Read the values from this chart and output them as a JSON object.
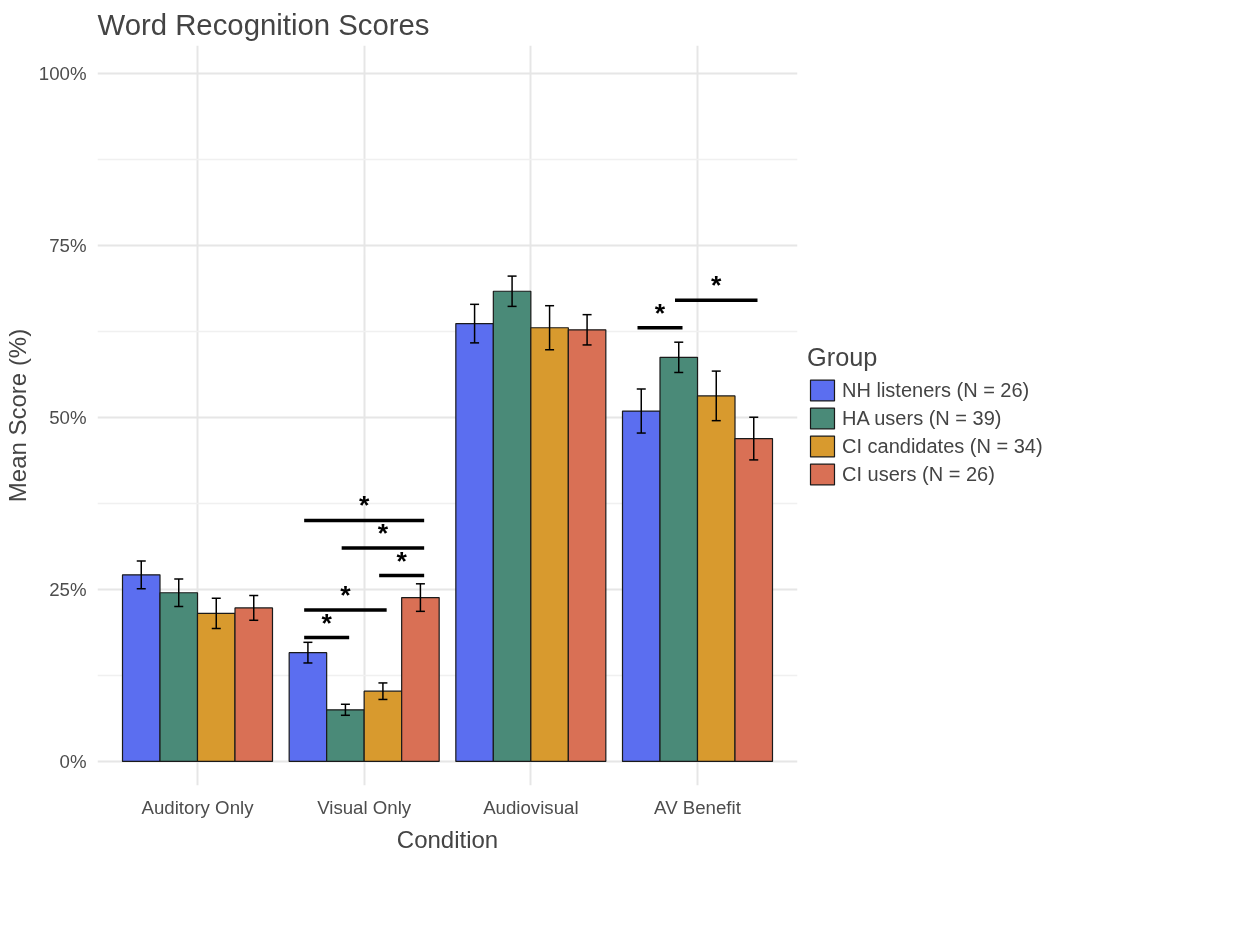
{
  "chart_data": {
    "type": "bar",
    "title": "Word Recognition Scores",
    "xlabel": "Condition",
    "ylabel": "Mean Score (%)",
    "legend_title": "Group",
    "legend": "right",
    "grid": true,
    "categories": [
      "Auditory Only",
      "Visual Only",
      "Audiovisual",
      "AV Benefit"
    ],
    "ylim": [
      -3.5,
      104
    ],
    "yticks": [
      {
        "value": 0,
        "label": "0%"
      },
      {
        "value": 25,
        "label": "25%"
      },
      {
        "value": 50,
        "label": "50%"
      },
      {
        "value": 75,
        "label": "75%"
      },
      {
        "value": 100,
        "label": "100%"
      }
    ],
    "series": [
      {
        "name": "NH listeners (N = 26)",
        "color": "#5b6ef0",
        "values": [
          27.1,
          15.8,
          63.6,
          50.9
        ],
        "errors": [
          2.0,
          1.5,
          2.8,
          3.2
        ]
      },
      {
        "name": "HA users (N = 39)",
        "color": "#4a8a78",
        "values": [
          24.5,
          7.5,
          68.3,
          58.7
        ],
        "errors": [
          2.0,
          0.8,
          2.2,
          2.2
        ]
      },
      {
        "name": "CI candidates (N = 34)",
        "color": "#d89a2e",
        "values": [
          21.5,
          10.2,
          63.0,
          53.1
        ],
        "errors": [
          2.2,
          1.2,
          3.2,
          3.6
        ]
      },
      {
        "name": "CI users (N = 26)",
        "color": "#d97055",
        "values": [
          22.3,
          23.8,
          62.7,
          46.9
        ],
        "errors": [
          1.8,
          2.0,
          2.2,
          3.1
        ]
      }
    ],
    "annotations": [
      "*",
      "*",
      "*",
      "*",
      "*",
      "*",
      "*"
    ]
  }
}
